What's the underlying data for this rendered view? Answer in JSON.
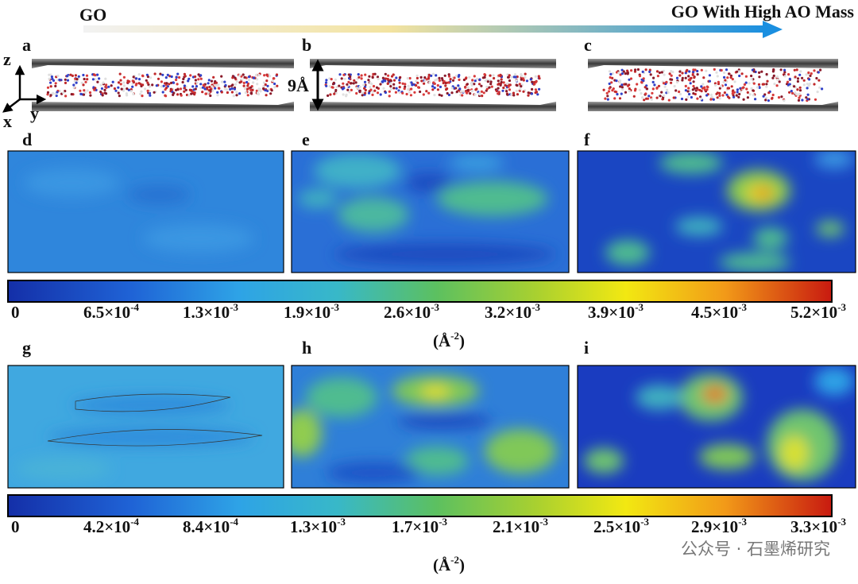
{
  "header": {
    "left": "GO",
    "right": "GO With High AO Mass"
  },
  "panels": [
    "a",
    "b",
    "c",
    "d",
    "e",
    "f",
    "g",
    "h",
    "i"
  ],
  "axes": {
    "z": "z",
    "x": "x",
    "y": "y"
  },
  "spacing": "9Å",
  "colorbars": [
    {
      "ticks": [
        {
          "base": "0"
        },
        {
          "base": "6.5×10",
          "exp": "-4"
        },
        {
          "base": "1.3×10",
          "exp": "-3"
        },
        {
          "base": "1.9×10",
          "exp": "-3"
        },
        {
          "base": "2.6×10",
          "exp": "-3"
        },
        {
          "base": "3.2×10",
          "exp": "-3"
        },
        {
          "base": "3.9×10",
          "exp": "-3"
        },
        {
          "base": "4.5×10",
          "exp": "-3"
        },
        {
          "base": "5.2×10",
          "exp": "-3"
        }
      ],
      "unit": {
        "base": "(Å",
        "exp": "-2",
        "tail": ")"
      }
    },
    {
      "ticks": [
        {
          "base": "0"
        },
        {
          "base": "4.2×10",
          "exp": "-4"
        },
        {
          "base": "8.4×10",
          "exp": "-4"
        },
        {
          "base": "1.3×10",
          "exp": "-3"
        },
        {
          "base": "1.7×10",
          "exp": "-3"
        },
        {
          "base": "2.1×10",
          "exp": "-3"
        },
        {
          "base": "2.5×10",
          "exp": "-3"
        },
        {
          "base": "2.9×10",
          "exp": "-3"
        },
        {
          "base": "3.3×10",
          "exp": "-3"
        }
      ],
      "unit": {
        "base": "(Å",
        "exp": "-2",
        "tail": ")"
      }
    }
  ],
  "watermark": "公众号 · 石墨烯研究"
}
